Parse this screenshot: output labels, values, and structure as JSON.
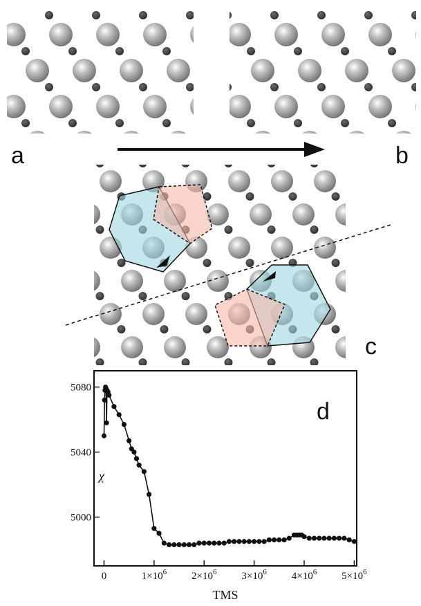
{
  "panels": {
    "a": "a",
    "b": "b",
    "c": "c",
    "d": "d"
  },
  "colors": {
    "hexagon_fill": "#9fd6e0",
    "pentagon_fill": "#f3b8a8",
    "large_sphere": "#a8a8a8",
    "small_sphere": "#3a3a3a"
  },
  "chart_data": {
    "type": "line",
    "xlabel": "TMS",
    "ylabel": "χ",
    "xlim": [
      0,
      5000000
    ],
    "ylim": [
      4970,
      5090
    ],
    "xticks": [
      {
        "value": 0,
        "label": "0"
      },
      {
        "value": 1000000,
        "label": "1×10",
        "exp": "6"
      },
      {
        "value": 2000000,
        "label": "2×10",
        "exp": "6"
      },
      {
        "value": 3000000,
        "label": "3×10",
        "exp": "6"
      },
      {
        "value": 4000000,
        "label": "4×10",
        "exp": "6"
      },
      {
        "value": 5000000,
        "label": "5×10",
        "exp": "6"
      }
    ],
    "yticks": [
      {
        "value": 5000,
        "label": "5000"
      },
      {
        "value": 5040,
        "label": "5040"
      },
      {
        "value": 5080,
        "label": "5080"
      }
    ],
    "series": [
      {
        "x": [
          0,
          10000,
          20000,
          30000,
          40000,
          50000,
          60000,
          80000,
          100000,
          200000,
          300000,
          400000,
          500000,
          550000,
          600000,
          650000,
          700000,
          800000,
          900000,
          1000000,
          1100000,
          1200000,
          1300000,
          1400000,
          1500000,
          1600000,
          1700000,
          1800000,
          1900000,
          2000000,
          2100000,
          2200000,
          2300000,
          2400000,
          2500000,
          2600000,
          2700000,
          2800000,
          2900000,
          3000000,
          3100000,
          3200000,
          3300000,
          3400000,
          3500000,
          3600000,
          3700000,
          3800000,
          3850000,
          3900000,
          3950000,
          4000000,
          4100000,
          4200000,
          4300000,
          4400000,
          4500000,
          4600000,
          4700000,
          4800000,
          4900000,
          5000000
        ],
        "y": [
          5050,
          5072,
          5078,
          5080,
          5079,
          5058,
          5078,
          5077,
          5075,
          5068,
          5063,
          5057,
          5047,
          5042,
          5040,
          5036,
          5032,
          5028,
          5014,
          4993,
          4990,
          4984,
          4983,
          4983,
          4983,
          4983,
          4983,
          4983,
          4984,
          4984,
          4984,
          4984,
          4984,
          4984,
          4985,
          4985,
          4985,
          4985,
          4985,
          4985,
          4985,
          4985,
          4986,
          4986,
          4986,
          4986,
          4987,
          4989,
          4989,
          4989,
          4989,
          4988,
          4987,
          4987,
          4987,
          4987,
          4987,
          4987,
          4987,
          4987,
          4986,
          4985
        ]
      }
    ]
  }
}
